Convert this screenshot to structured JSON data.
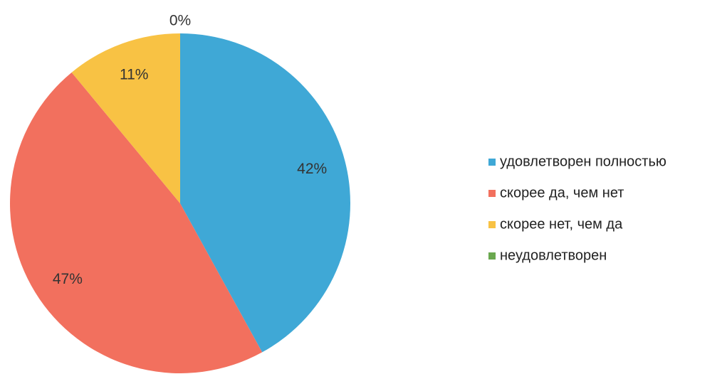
{
  "chart_data": {
    "type": "pie",
    "categories": [
      "удовлетворен полностью",
      "скорее да, чем нет",
      "скорее нет, чем да",
      "неудовлетворен"
    ],
    "values": [
      42,
      47,
      11,
      0
    ],
    "value_labels": [
      "42%",
      "47%",
      "11%",
      "0%"
    ],
    "colors": [
      "#3fa8d6",
      "#f2705e",
      "#f8c244",
      "#6aa84f"
    ],
    "legend": "right"
  }
}
